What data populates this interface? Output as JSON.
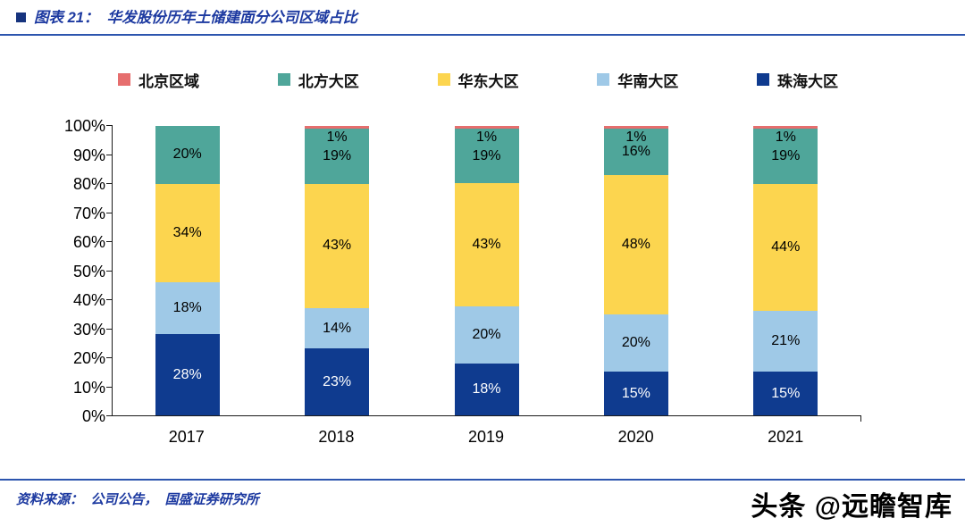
{
  "header": {
    "title": "图表 21：  华发股份历年土储建面分公司区域占比"
  },
  "chart_data": {
    "type": "bar",
    "stacked": true,
    "title": "华发股份历年土储建面分公司区域占比",
    "categories": [
      "2017",
      "2018",
      "2019",
      "2020",
      "2021"
    ],
    "series": [
      {
        "name": "珠海大区",
        "color": "#0F3B8F",
        "label_color": "#FFFFFF",
        "values": [
          28,
          23,
          18,
          15,
          15
        ]
      },
      {
        "name": "华南大区",
        "color": "#9FC9E7",
        "label_color": "#000000",
        "values": [
          18,
          14,
          20,
          20,
          21
        ]
      },
      {
        "name": "华东大区",
        "color": "#FCD54F",
        "label_color": "#000000",
        "values": [
          34,
          43,
          43,
          48,
          44
        ]
      },
      {
        "name": "北方大区",
        "color": "#4FA69A",
        "label_color": "#000000",
        "values": [
          20,
          19,
          19,
          16,
          19
        ]
      },
      {
        "name": "北京区域",
        "color": "#E66E6E",
        "label_color": "#000000",
        "values": [
          0,
          1,
          1,
          1,
          1
        ]
      }
    ],
    "legend_order": [
      "北京区域",
      "北方大区",
      "华东大区",
      "华南大区",
      "珠海大区"
    ],
    "legend_position": "top",
    "grid": false,
    "xlabel": "",
    "ylabel": "",
    "ylim": [
      0,
      100
    ],
    "ytick_labels": [
      "0%",
      "10%",
      "20%",
      "30%",
      "40%",
      "50%",
      "60%",
      "70%",
      "80%",
      "90%",
      "100%"
    ]
  },
  "footer": {
    "source": "资料来源：  公司公告，  国盛证券研究所",
    "watermark": "头条 @远瞻智库"
  },
  "colors": {
    "accent_text": "#1C39A0",
    "rule": "#2C55AE",
    "axis": "#1A1A1A",
    "title_bullet": "#16337E"
  }
}
